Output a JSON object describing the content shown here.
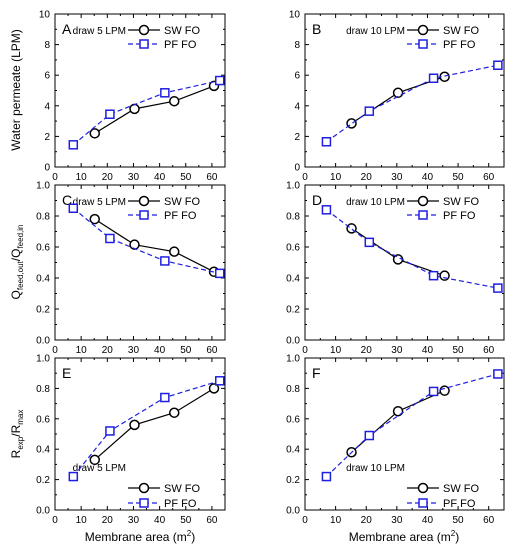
{
  "figure": {
    "ylabel_rows": [
      {
        "text": "Water permeate (LPM)"
      },
      {
        "text": "Q",
        "sub1": "feed,out",
        "mid": "/Q",
        "sub2": "feed,in"
      },
      {
        "text": "R",
        "sub1": "exp",
        "mid": "/R",
        "sub2": "max"
      }
    ],
    "xlabel": {
      "text": "Membrane area (m",
      "sup": "2",
      "tail": ")"
    }
  },
  "colors": {
    "sw": "#000000",
    "pf": "#1f1fe0"
  },
  "chart_data": [
    {
      "type": "line",
      "letter": "A",
      "note": "draw 5 LPM",
      "xlim": [
        0,
        65
      ],
      "ylim": [
        0,
        10
      ],
      "xticks": [
        "0",
        "10",
        "20",
        "30",
        "40",
        "50",
        "60"
      ],
      "yticks": [
        "0",
        "2",
        "4",
        "6",
        "8",
        "10"
      ],
      "legend": "top-right",
      "series": [
        {
          "name": "SW FO",
          "x": [
            15.2,
            30.4,
            45.6,
            60.8
          ],
          "y": [
            2.2,
            3.8,
            4.3,
            5.3
          ]
        },
        {
          "name": "PF FO",
          "x": [
            7.0,
            21.0,
            42.0,
            63.0
          ],
          "y": [
            1.45,
            3.45,
            4.85,
            5.65
          ]
        }
      ]
    },
    {
      "type": "line",
      "letter": "B",
      "note": "draw 10 LPM",
      "xlim": [
        0,
        65
      ],
      "ylim": [
        0,
        10
      ],
      "xticks": [
        "0",
        "10",
        "20",
        "30",
        "40",
        "50",
        "60"
      ],
      "yticks": [
        "0",
        "2",
        "4",
        "6",
        "8",
        "10"
      ],
      "legend": "top-right",
      "series": [
        {
          "name": "SW FO",
          "x": [
            15.2,
            30.4,
            45.6
          ],
          "y": [
            2.85,
            4.85,
            5.9
          ]
        },
        {
          "name": "PF FO",
          "x": [
            7.0,
            21.0,
            42.0,
            63.0
          ],
          "y": [
            1.65,
            3.65,
            5.8,
            6.65
          ]
        }
      ]
    },
    {
      "type": "line",
      "letter": "C",
      "note": "draw 5 LPM",
      "xlim": [
        0,
        65
      ],
      "ylim": [
        0,
        1.0
      ],
      "xticks": [
        "0",
        "10",
        "20",
        "30",
        "40",
        "50",
        "60"
      ],
      "yticks": [
        "0.0",
        "0.2",
        "0.4",
        "0.6",
        "0.8",
        "1.0"
      ],
      "legend": "top-right",
      "series": [
        {
          "name": "SW FO",
          "x": [
            15.2,
            30.4,
            45.6,
            60.8
          ],
          "y": [
            0.78,
            0.615,
            0.57,
            0.44
          ]
        },
        {
          "name": "PF FO",
          "x": [
            7.0,
            21.0,
            42.0,
            63.0
          ],
          "y": [
            0.85,
            0.655,
            0.51,
            0.43
          ]
        }
      ]
    },
    {
      "type": "line",
      "letter": "D",
      "note": "draw 10 LPM",
      "xlim": [
        0,
        65
      ],
      "ylim": [
        0,
        1.0
      ],
      "xticks": [
        "0",
        "10",
        "20",
        "30",
        "40",
        "50",
        "60"
      ],
      "yticks": [
        "0.0",
        "0.2",
        "0.4",
        "0.6",
        "0.8",
        "1.0"
      ],
      "legend": "top-right",
      "series": [
        {
          "name": "SW FO",
          "x": [
            15.2,
            30.4,
            45.6
          ],
          "y": [
            0.72,
            0.52,
            0.415
          ]
        },
        {
          "name": "PF FO",
          "x": [
            7.0,
            21.0,
            42.0,
            63.0
          ],
          "y": [
            0.84,
            0.63,
            0.415,
            0.335
          ]
        }
      ]
    },
    {
      "type": "line",
      "letter": "E",
      "note": "draw 5 LPM",
      "xlim": [
        0,
        65
      ],
      "ylim": [
        0,
        1.0
      ],
      "xticks": [
        "0",
        "10",
        "20",
        "30",
        "40",
        "50",
        "60"
      ],
      "yticks": [
        "0.0",
        "0.2",
        "0.4",
        "0.6",
        "0.8",
        "1.0"
      ],
      "legend": "bottom-right",
      "series": [
        {
          "name": "SW FO",
          "x": [
            15.2,
            30.4,
            45.6,
            60.8
          ],
          "y": [
            0.33,
            0.56,
            0.64,
            0.8
          ]
        },
        {
          "name": "PF FO",
          "x": [
            7.0,
            21.0,
            42.0,
            63.0
          ],
          "y": [
            0.22,
            0.52,
            0.74,
            0.85
          ]
        }
      ]
    },
    {
      "type": "line",
      "letter": "F",
      "note": "draw 10 LPM",
      "xlim": [
        0,
        65
      ],
      "ylim": [
        0,
        1.0
      ],
      "xticks": [
        "0",
        "10",
        "20",
        "30",
        "40",
        "50",
        "60"
      ],
      "yticks": [
        "0.0",
        "0.2",
        "0.4",
        "0.6",
        "0.8",
        "1.0"
      ],
      "legend": "bottom-right",
      "series": [
        {
          "name": "SW FO",
          "x": [
            15.2,
            30.4,
            45.6
          ],
          "y": [
            0.38,
            0.65,
            0.785
          ]
        },
        {
          "name": "PF FO",
          "x": [
            7.0,
            21.0,
            42.0,
            63.0
          ],
          "y": [
            0.22,
            0.49,
            0.78,
            0.895
          ]
        }
      ]
    }
  ]
}
